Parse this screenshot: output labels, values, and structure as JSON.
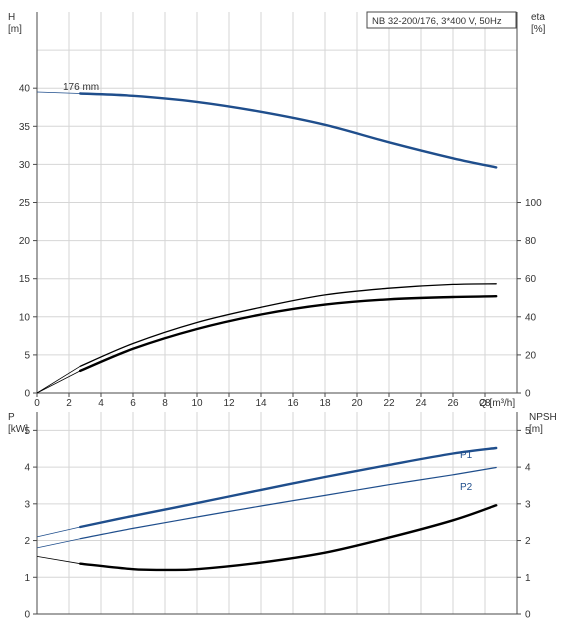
{
  "chart_data": [
    {
      "type": "line",
      "name": "head-efficiency-panel",
      "title": "NB 32-200/176, 3*400 V, 50Hz",
      "xlabel": "Q [m³/h]",
      "ylabel_left": [
        "H",
        "[m]"
      ],
      "ylabel_right": [
        "eta",
        "[%]"
      ],
      "xlim": [
        0,
        30
      ],
      "ylim_left": [
        0,
        50
      ],
      "ylim_right": [
        0,
        200
      ],
      "x_ticks": [
        "0",
        "2",
        "4",
        "6",
        "8",
        "10",
        "12",
        "14",
        "16",
        "18",
        "20",
        "22",
        "24",
        "26",
        "28"
      ],
      "y_ticks_left": [
        "0",
        "5",
        "10",
        "15",
        "20",
        "25",
        "30",
        "35",
        "40"
      ],
      "y_ticks_right": [
        "0",
        "20",
        "40",
        "60",
        "80",
        "100"
      ],
      "grid": true,
      "annotation": "176 mm",
      "series": [
        {
          "axis": "left",
          "color": "#1f4e8c",
          "width": 2.4,
          "x": [
            2.7,
            6,
            10,
            14,
            18,
            22,
            26,
            28.7
          ],
          "y": [
            39.3,
            39.0,
            38.2,
            36.9,
            35.2,
            32.9,
            30.8,
            29.6
          ],
          "extension": {
            "x": [
              0,
              2.7
            ],
            "y": [
              39.5,
              39.3
            ]
          }
        },
        {
          "axis": "right",
          "color": "#000000",
          "width": 1.3,
          "x": [
            2.7,
            6,
            10,
            14,
            18,
            22,
            26,
            28.7
          ],
          "y": [
            14,
            26,
            37,
            45,
            51.5,
            55,
            57,
            57.3
          ],
          "extension": {
            "x": [
              0,
              2.7
            ],
            "y": [
              0,
              14
            ]
          }
        },
        {
          "axis": "left",
          "color": "#000000",
          "width": 2.4,
          "x": [
            2.7,
            6,
            10,
            14,
            18,
            22,
            26,
            28.7
          ],
          "y": [
            2.9,
            5.8,
            8.4,
            10.3,
            11.6,
            12.3,
            12.6,
            12.7
          ],
          "extension": {
            "x": [
              0,
              2.7
            ],
            "y": [
              0,
              2.9
            ]
          }
        }
      ]
    },
    {
      "type": "line",
      "name": "power-npsh-panel",
      "xlabel": "",
      "ylabel_left": [
        "P",
        "[kW]"
      ],
      "ylabel_right": [
        "NPSH",
        "[m]"
      ],
      "xlim": [
        0,
        30
      ],
      "ylim_left": [
        0,
        5.5
      ],
      "ylim_right": [
        0,
        5.5
      ],
      "y_ticks_left": [
        "0",
        "1",
        "2",
        "3",
        "4",
        "5"
      ],
      "y_ticks_right": [
        "0",
        "1",
        "2",
        "3",
        "4",
        "5"
      ],
      "grid": true,
      "series": [
        {
          "name": "P1",
          "axis": "left",
          "color": "#1f4e8c",
          "width": 2.4,
          "x": [
            2.7,
            6,
            10,
            14,
            18,
            22,
            26,
            28.7
          ],
          "y": [
            2.37,
            2.67,
            3.02,
            3.38,
            3.73,
            4.06,
            4.37,
            4.52
          ],
          "extension": {
            "x": [
              0,
              2.7
            ],
            "y": [
              2.1,
              2.37
            ]
          }
        },
        {
          "name": "P2",
          "axis": "left",
          "color": "#1f4e8c",
          "width": 1.2,
          "x": [
            2.7,
            6,
            10,
            14,
            18,
            22,
            26,
            28.7
          ],
          "y": [
            2.05,
            2.33,
            2.64,
            2.94,
            3.23,
            3.52,
            3.79,
            3.99
          ],
          "extension": {
            "x": [
              0,
              2.7
            ],
            "y": [
              1.8,
              2.05
            ]
          }
        },
        {
          "axis": "right",
          "color": "#000000",
          "width": 2.4,
          "x": [
            2.7,
            6,
            8,
            10,
            14,
            18,
            22,
            26,
            28.7
          ],
          "y": [
            1.37,
            1.22,
            1.2,
            1.22,
            1.4,
            1.67,
            2.08,
            2.55,
            2.96
          ],
          "extension": {
            "x": [
              0,
              2.7
            ],
            "y": [
              1.57,
              1.37
            ]
          }
        }
      ]
    }
  ]
}
